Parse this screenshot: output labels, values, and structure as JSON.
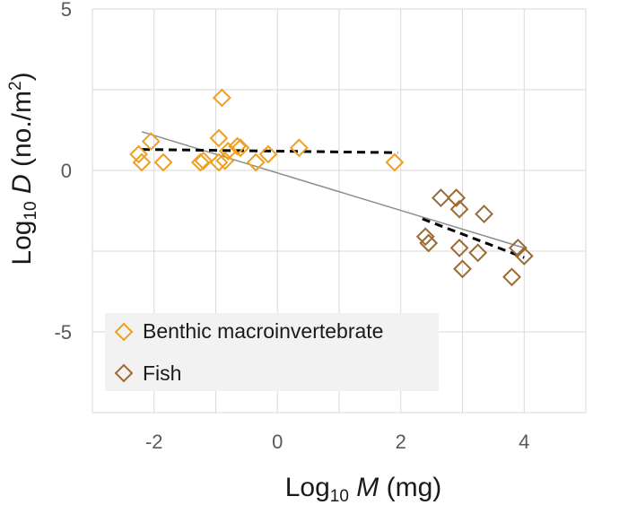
{
  "chart_data": {
    "type": "scatter",
    "title": "",
    "xlabel": {
      "prefix": "Log",
      "sub": "10",
      "var": "M",
      "unit": " (mg)"
    },
    "ylabel": {
      "prefix": "Log",
      "sub": "10",
      "var": "D",
      "unit_open": " (no./m",
      "sup": "2",
      "unit_close": ")"
    },
    "xlim": [
      -3,
      5
    ],
    "ylim": [
      -7.5,
      5
    ],
    "xticks": [
      -2,
      0,
      2,
      4
    ],
    "yticks": [
      5,
      0,
      -5
    ],
    "xtick_labels": [
      "-2",
      "0",
      "2",
      "4"
    ],
    "ytick_labels": [
      "5",
      "0",
      "-5"
    ],
    "grid": true,
    "legend_position": "bottom-left",
    "colors": {
      "benthic": "#F0A020",
      "fish": "#9C6A32",
      "overall_fit": "#8C8C8C",
      "group_fit": "#000000",
      "grid": "#D9D9D9",
      "legend_bg": "#F2F2F2"
    },
    "series": [
      {
        "name": "Benthic macroinvertebrate",
        "marker": "diamond-open",
        "color": "#F0A020",
        "points": [
          [
            -2.25,
            0.5
          ],
          [
            -2.2,
            0.25
          ],
          [
            -2.05,
            0.9
          ],
          [
            -1.85,
            0.25
          ],
          [
            -1.25,
            0.25
          ],
          [
            -1.2,
            0.3
          ],
          [
            -0.95,
            1.0
          ],
          [
            -0.9,
            2.25
          ],
          [
            -0.95,
            0.25
          ],
          [
            -0.85,
            0.3
          ],
          [
            -0.8,
            0.6
          ],
          [
            -0.65,
            0.75
          ],
          [
            -0.6,
            0.7
          ],
          [
            -0.35,
            0.25
          ],
          [
            -0.15,
            0.5
          ],
          [
            0.35,
            0.7
          ],
          [
            1.9,
            0.25
          ]
        ]
      },
      {
        "name": "Fish",
        "marker": "diamond-open",
        "color": "#9C6A32",
        "points": [
          [
            2.4,
            -2.05
          ],
          [
            2.45,
            -2.25
          ],
          [
            2.65,
            -0.85
          ],
          [
            2.9,
            -0.85
          ],
          [
            2.95,
            -1.2
          ],
          [
            2.95,
            -2.4
          ],
          [
            3.0,
            -3.05
          ],
          [
            3.25,
            -2.55
          ],
          [
            3.35,
            -1.35
          ],
          [
            3.8,
            -3.3
          ],
          [
            3.9,
            -2.4
          ],
          [
            4.0,
            -2.65
          ]
        ]
      }
    ],
    "fit_lines": [
      {
        "name": "overall",
        "style": "solid",
        "color": "#8C8C8C",
        "x": [
          -2.2,
          4.0
        ],
        "y": [
          1.2,
          -2.4
        ]
      },
      {
        "name": "benthic",
        "style": "dashed",
        "color": "#000000",
        "x": [
          -2.2,
          1.95
        ],
        "y": [
          0.65,
          0.55
        ]
      },
      {
        "name": "fish",
        "style": "dashed",
        "color": "#000000",
        "x": [
          2.35,
          4.0
        ],
        "y": [
          -1.5,
          -2.7
        ]
      }
    ]
  }
}
